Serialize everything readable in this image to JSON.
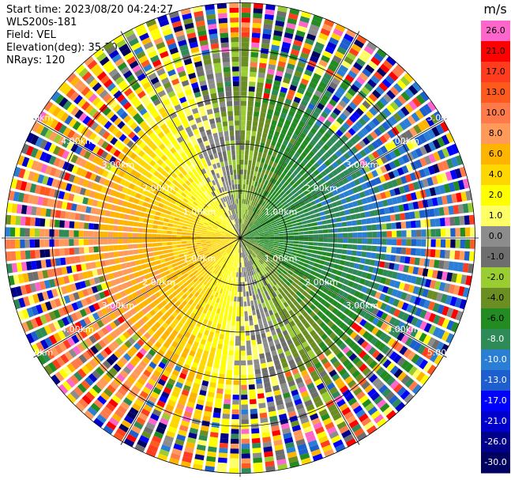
{
  "header": {
    "start_time": "Start time: 2023/08/20 04:24:27",
    "device": "WLS200s-181",
    "field": "Field: VEL",
    "elevation": "Elevation(deg): 35.30",
    "nrays": "NRays: 120"
  },
  "chart_data": {
    "type": "polar-ppi",
    "unit_label": "m/s",
    "n_rays": 120,
    "range_rings_km": [
      1.0,
      2.0,
      3.0,
      4.0,
      5.0
    ],
    "ring_label_texts": [
      "1.00km",
      "2.00km",
      "3.00km",
      "4.00km",
      "5.00km"
    ],
    "colorbar": {
      "ticks": [
        "26.0",
        "21.0",
        "17.0",
        "13.0",
        "10.0",
        "8.0",
        "6.0",
        "4.0",
        "2.0",
        "1.0",
        "0.0",
        "-1.0",
        "-2.0",
        "-4.0",
        "-6.0",
        "-8.0",
        "-10.0",
        "-13.0",
        "-17.0",
        "-21.0",
        "-26.0",
        "-30.0"
      ],
      "colors": [
        "#ff66cc",
        "#ff0000",
        "#ff3c1e",
        "#ff5a1e",
        "#ff7a4a",
        "#ff9a5a",
        "#ffb400",
        "#ffd700",
        "#ffff00",
        "#ffff66",
        "#8c8c8c",
        "#6e6e6e",
        "#9acd32",
        "#6b8e23",
        "#228b22",
        "#2e8b57",
        "#2a7fd4",
        "#1e5fd0",
        "#0000ff",
        "#0000cd",
        "#00008b",
        "#000060"
      ]
    }
  }
}
